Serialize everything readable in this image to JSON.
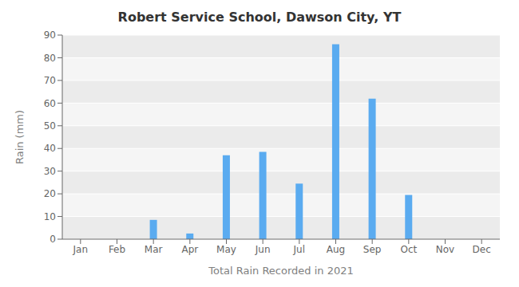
{
  "chart_data": {
    "type": "bar",
    "title": "Robert Service School, Dawson City, YT",
    "xlabel": "Total Rain Recorded in 2021",
    "ylabel": "Rain (mm)",
    "categories": [
      "Jan",
      "Feb",
      "Mar",
      "Apr",
      "May",
      "Jun",
      "Jul",
      "Aug",
      "Sep",
      "Oct",
      "Nov",
      "Dec"
    ],
    "values": [
      0,
      0,
      8.5,
      2.5,
      37,
      38.5,
      24.5,
      86,
      62,
      19.5,
      0,
      0
    ],
    "color": "#5aabf0",
    "ylim": [
      0,
      90
    ],
    "yticks": [
      0,
      10,
      20,
      30,
      40,
      50,
      60,
      70,
      80,
      90
    ],
    "grid": true
  }
}
